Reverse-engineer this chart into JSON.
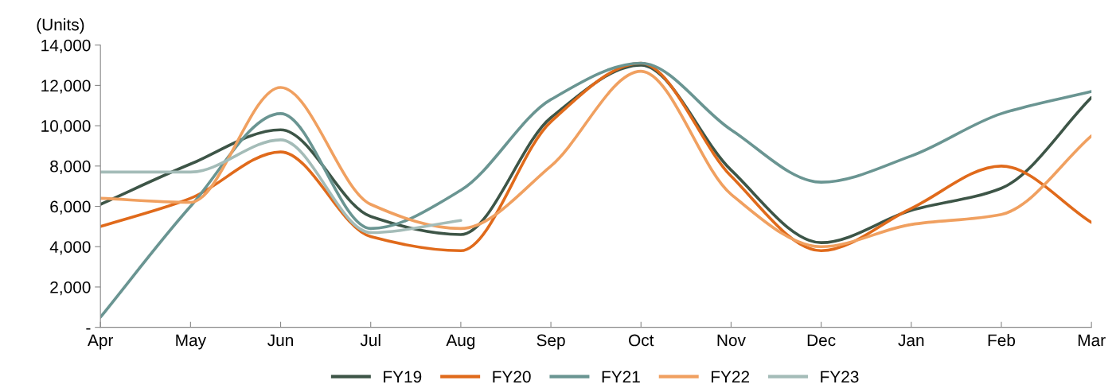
{
  "chart_data": {
    "type": "line",
    "ylabel": "(Units)",
    "categories": [
      "Apr",
      "May",
      "Jun",
      "Jul",
      "Aug",
      "Sep",
      "Oct",
      "Nov",
      "Dec",
      "Jan",
      "Feb",
      "Mar"
    ],
    "series": [
      {
        "name": "FY19",
        "color": "#3d5547",
        "values": [
          6100,
          8100,
          9800,
          5500,
          4600,
          10400,
          13000,
          7800,
          4200,
          5800,
          6900,
          11400
        ]
      },
      {
        "name": "FY20",
        "color": "#e06a1b",
        "values": [
          5000,
          6400,
          8700,
          4500,
          3800,
          10200,
          13100,
          7500,
          3800,
          5900,
          8000,
          5200
        ]
      },
      {
        "name": "FY21",
        "color": "#6a9592",
        "values": [
          500,
          6000,
          10600,
          4900,
          6800,
          11300,
          13100,
          9800,
          7200,
          8500,
          10600,
          11700
        ]
      },
      {
        "name": "FY22",
        "color": "#f0a060",
        "values": [
          6400,
          6200,
          11900,
          6100,
          4900,
          8000,
          12700,
          6600,
          4000,
          5100,
          5600,
          9500
        ]
      },
      {
        "name": "FY23",
        "color": "#a4bcb8",
        "values": [
          7700,
          7700,
          9300,
          4700,
          5300,
          null,
          null,
          null,
          null,
          null,
          null,
          null
        ]
      }
    ],
    "ylim": [
      0,
      14000
    ],
    "yticks": [
      {
        "value": 0,
        "label": "-"
      },
      {
        "value": 2000,
        "label": "2,000"
      },
      {
        "value": 4000,
        "label": "4,000"
      },
      {
        "value": 6000,
        "label": "6,000"
      },
      {
        "value": 8000,
        "label": "8,000"
      },
      {
        "value": 10000,
        "label": "10,000"
      },
      {
        "value": 12000,
        "label": "12,000"
      },
      {
        "value": 14000,
        "label": "14,000"
      }
    ],
    "grid": false,
    "legend": "bottom",
    "marker": "none",
    "line_style": "solid"
  }
}
